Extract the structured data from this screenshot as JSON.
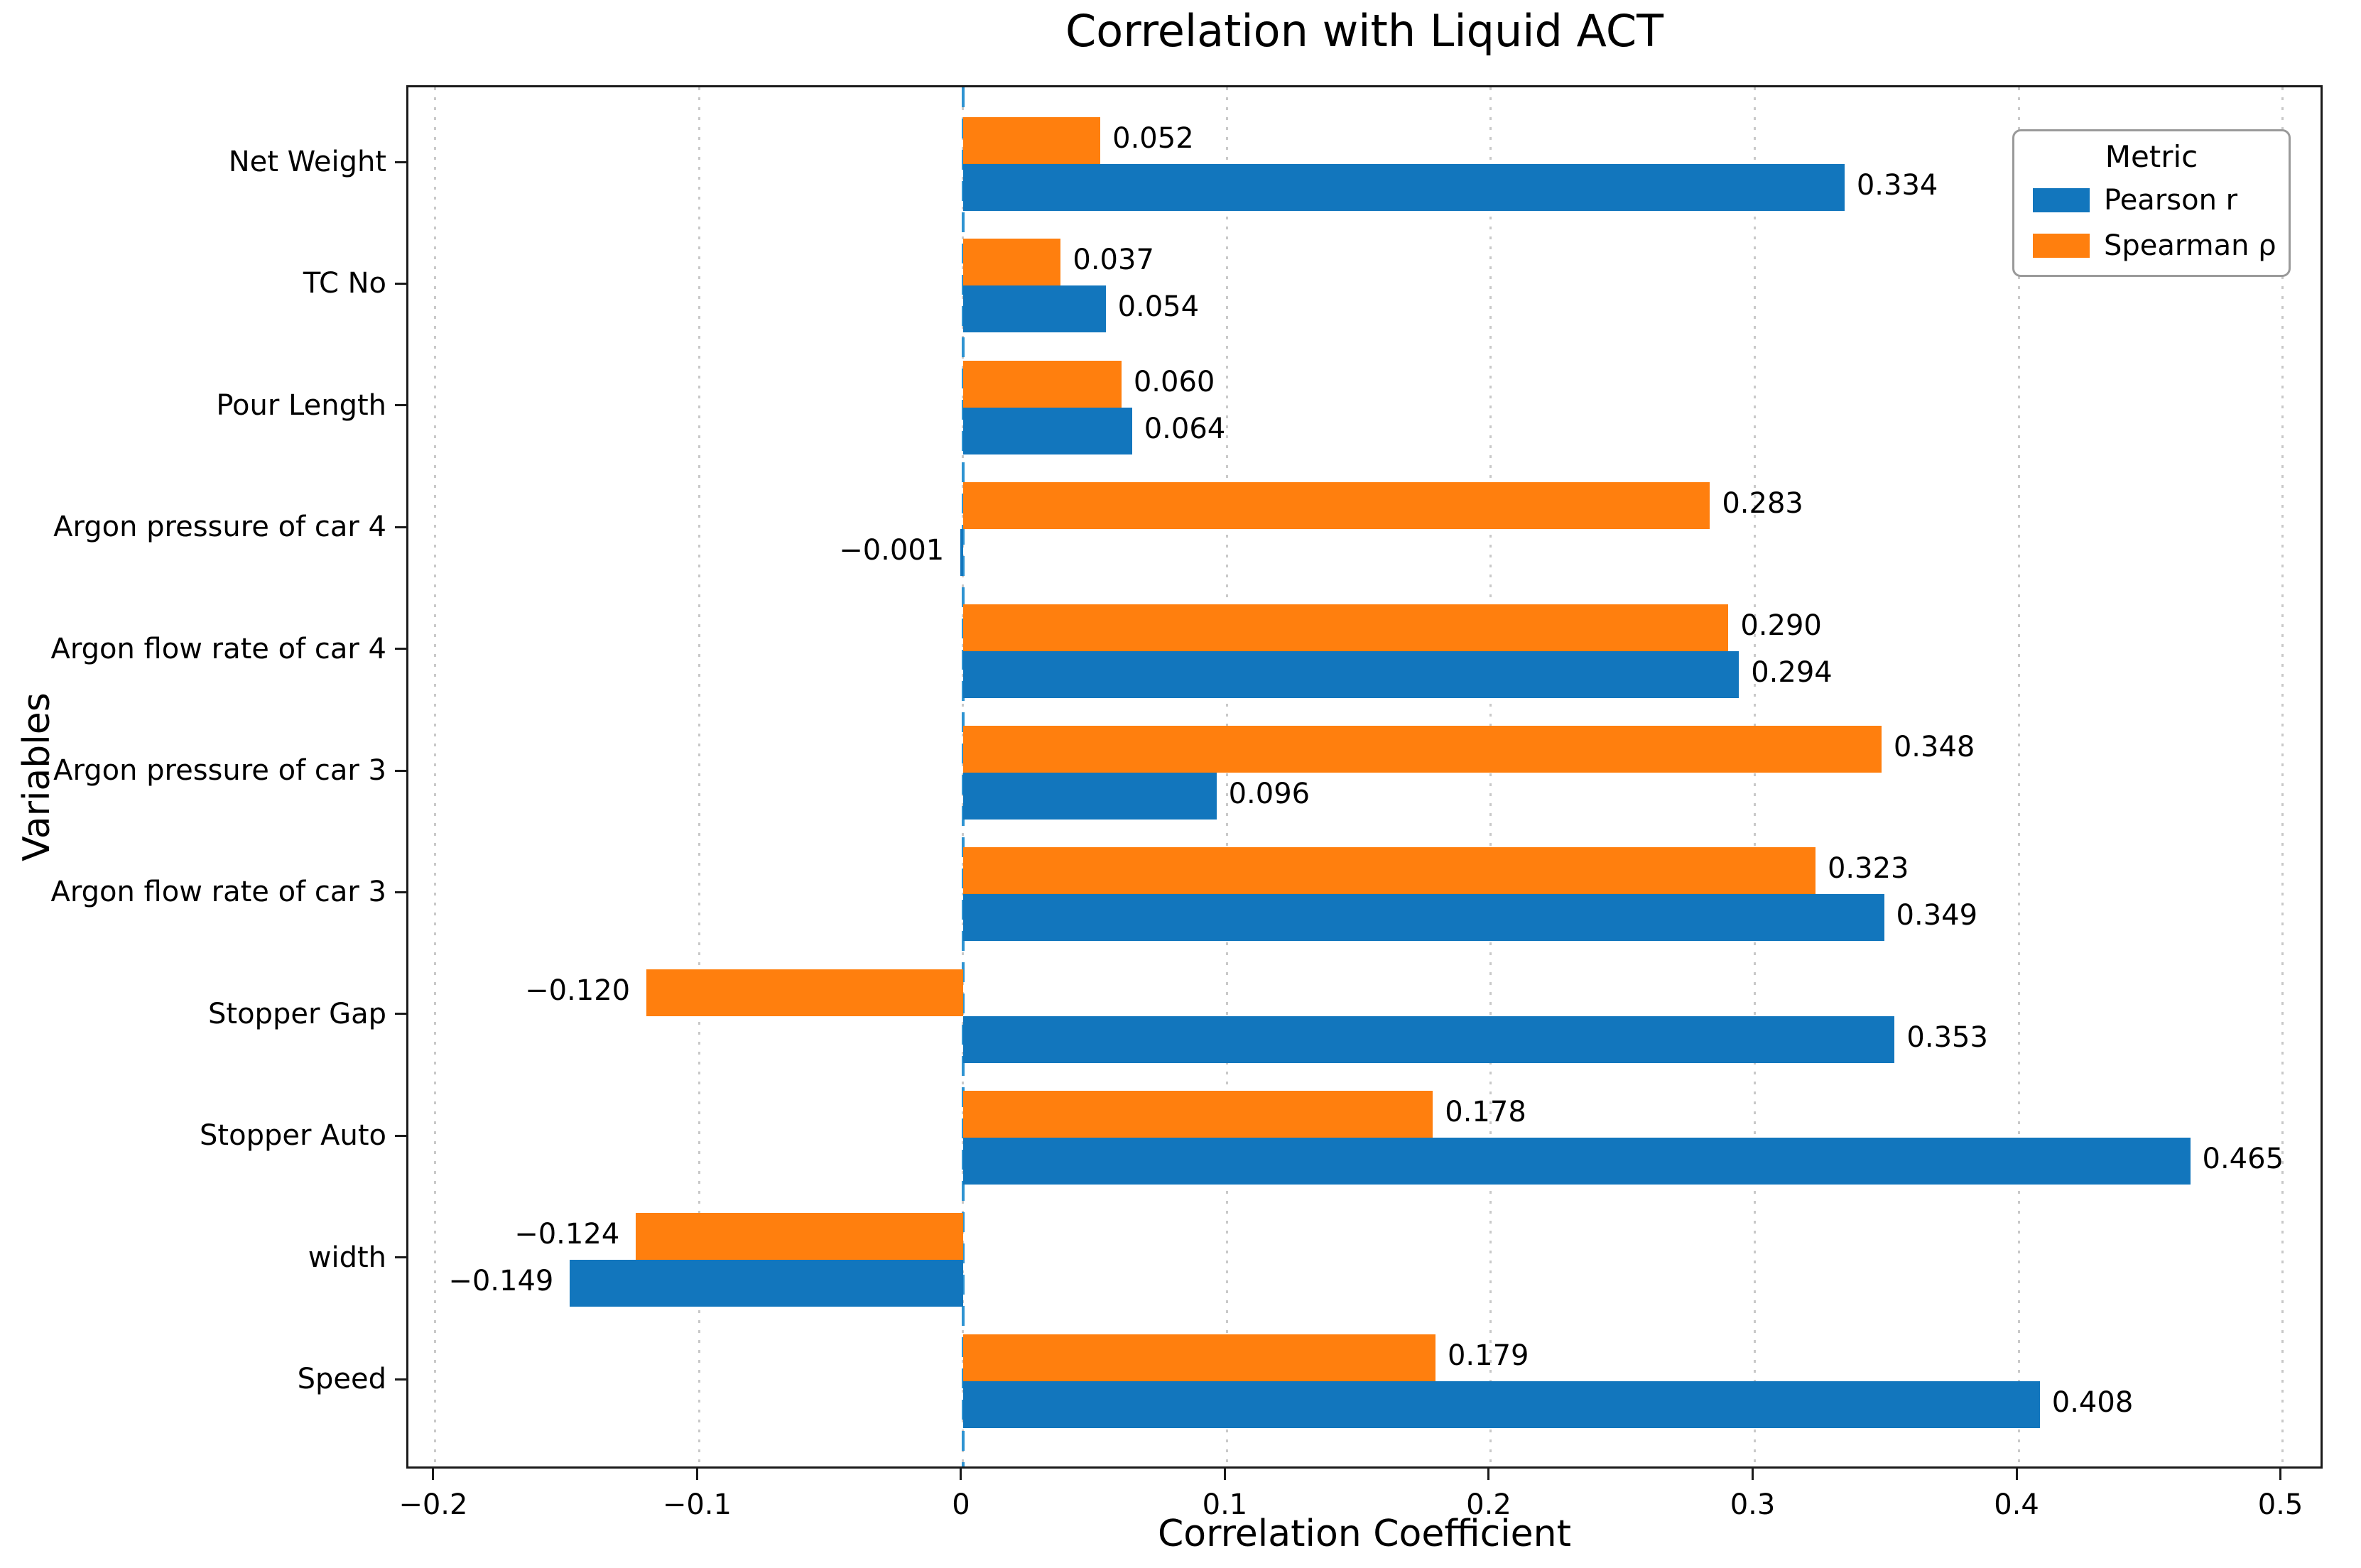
{
  "chart_data": {
    "type": "bar",
    "orientation": "horizontal",
    "title": "Correlation with Liquid ACT",
    "xlabel": "Correlation Coefficient",
    "ylabel": "Variables",
    "categories": [
      "Net Weight",
      "TC No",
      "Pour Length",
      "Argon pressure of car 4",
      "Argon flow rate of car 4",
      "Argon pressure of car 3",
      "Argon flow rate of car 3",
      "Stopper Gap",
      "Stopper Auto",
      "width",
      "Speed"
    ],
    "series": [
      {
        "name": "Pearson r",
        "color": "#1276bd",
        "values": [
          0.334,
          0.054,
          0.064,
          -0.001,
          0.294,
          0.096,
          0.349,
          0.353,
          0.465,
          -0.149,
          0.408
        ]
      },
      {
        "name": "Spearman ρ",
        "color": "#ff7f0e",
        "values": [
          0.052,
          0.037,
          0.06,
          0.283,
          0.29,
          0.348,
          0.323,
          -0.12,
          0.178,
          -0.124,
          0.179
        ]
      }
    ],
    "axes": {
      "xlim": [
        -0.2102,
        0.516
      ],
      "x_ticks": [
        -0.2,
        -0.1,
        0,
        0.1,
        0.2,
        0.3,
        0.4,
        0.5
      ],
      "x_tick_labels": [
        "−0.2",
        "−0.1",
        "0",
        "0.1",
        "0.2",
        "0.3",
        "0.4",
        "0.5"
      ],
      "grid": "vertical dotted"
    },
    "legend": {
      "title": "Metric",
      "position": "upper right"
    },
    "zero_line": {
      "x": 0,
      "style": "dashed",
      "color": "#2e93d1"
    }
  }
}
